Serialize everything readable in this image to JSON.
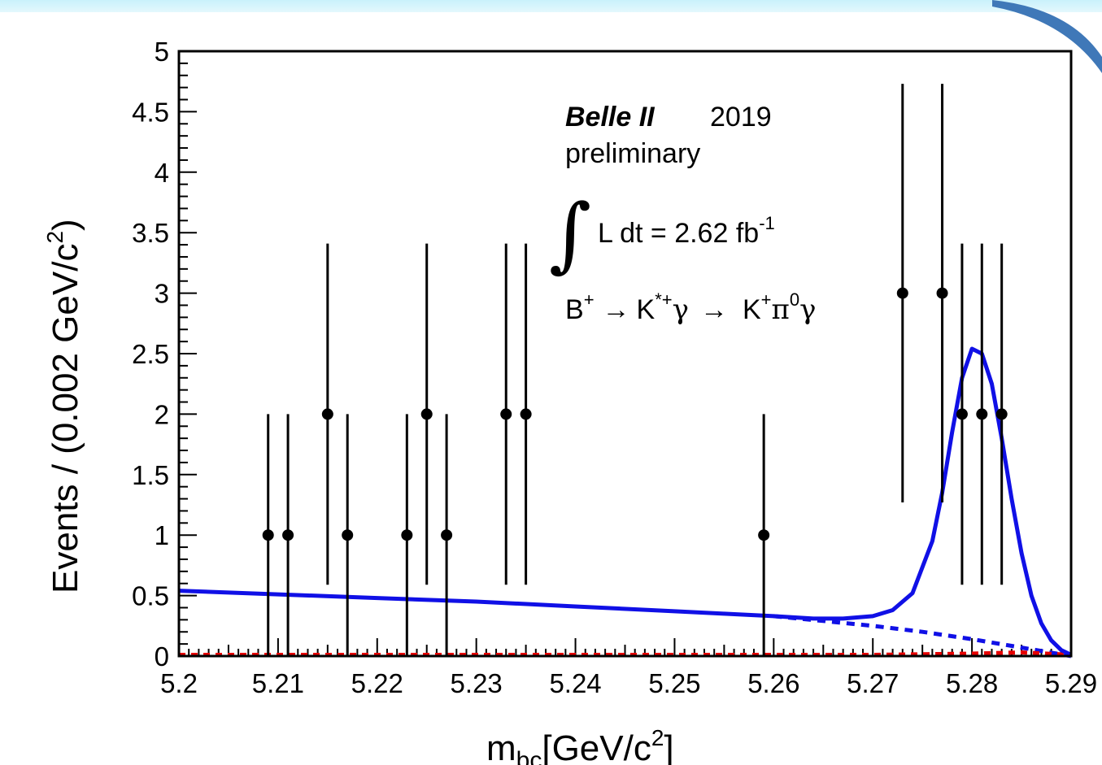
{
  "chart_data": {
    "type": "scatter",
    "xlabel_main": "m",
    "xlabel_sub": "bc",
    "xlabel_unit": "[GeV/c",
    "xlabel_sup": "2",
    "xlabel_close": "]",
    "ylabel_main": "Events / (0.002 GeV/c",
    "ylabel_sup": "2",
    "ylabel_close": ")",
    "xlim": [
      5.2,
      5.29
    ],
    "ylim": [
      0,
      5
    ],
    "x_ticks": [
      "5.2",
      "5.21",
      "5.22",
      "5.23",
      "5.24",
      "5.25",
      "5.26",
      "5.27",
      "5.28",
      "5.29"
    ],
    "y_ticks": [
      "0",
      "0.5",
      "1",
      "1.5",
      "2",
      "2.5",
      "3",
      "3.5",
      "4",
      "4.5",
      "5"
    ],
    "grid": false,
    "data_points": [
      {
        "x": 5.209,
        "y": 1,
        "lo": 0,
        "hi": 2
      },
      {
        "x": 5.211,
        "y": 1,
        "lo": 0,
        "hi": 2
      },
      {
        "x": 5.215,
        "y": 2,
        "lo": 0.59,
        "hi": 3.41
      },
      {
        "x": 5.217,
        "y": 1,
        "lo": 0,
        "hi": 2
      },
      {
        "x": 5.223,
        "y": 1,
        "lo": 0,
        "hi": 2
      },
      {
        "x": 5.225,
        "y": 2,
        "lo": 0.59,
        "hi": 3.41
      },
      {
        "x": 5.227,
        "y": 1,
        "lo": 0,
        "hi": 2
      },
      {
        "x": 5.233,
        "y": 2,
        "lo": 0.59,
        "hi": 3.41
      },
      {
        "x": 5.235,
        "y": 2,
        "lo": 0.59,
        "hi": 3.41
      },
      {
        "x": 5.259,
        "y": 1,
        "lo": 0,
        "hi": 2
      },
      {
        "x": 5.273,
        "y": 3,
        "lo": 1.27,
        "hi": 4.73
      },
      {
        "x": 5.277,
        "y": 3,
        "lo": 1.27,
        "hi": 4.73
      },
      {
        "x": 5.279,
        "y": 2,
        "lo": 0.59,
        "hi": 3.41
      },
      {
        "x": 5.281,
        "y": 2,
        "lo": 0.59,
        "hi": 3.41
      },
      {
        "x": 5.283,
        "y": 2,
        "lo": 0.59,
        "hi": 3.41
      }
    ],
    "fit_curves": {
      "total": {
        "style": "solid",
        "color": "#1010e6",
        "points": [
          [
            5.2,
            0.54
          ],
          [
            5.21,
            0.51
          ],
          [
            5.22,
            0.48
          ],
          [
            5.23,
            0.45
          ],
          [
            5.24,
            0.41
          ],
          [
            5.25,
            0.37
          ],
          [
            5.255,
            0.35
          ],
          [
            5.26,
            0.33
          ],
          [
            5.264,
            0.31
          ],
          [
            5.267,
            0.31
          ],
          [
            5.27,
            0.33
          ],
          [
            5.272,
            0.38
          ],
          [
            5.274,
            0.52
          ],
          [
            5.276,
            0.95
          ],
          [
            5.277,
            1.35
          ],
          [
            5.278,
            1.85
          ],
          [
            5.279,
            2.3
          ],
          [
            5.28,
            2.54
          ],
          [
            5.281,
            2.5
          ],
          [
            5.282,
            2.25
          ],
          [
            5.283,
            1.8
          ],
          [
            5.284,
            1.3
          ],
          [
            5.285,
            0.85
          ],
          [
            5.286,
            0.5
          ],
          [
            5.287,
            0.27
          ],
          [
            5.288,
            0.13
          ],
          [
            5.289,
            0.05
          ],
          [
            5.29,
            0.01
          ]
        ]
      },
      "background": {
        "style": "dashed",
        "color": "#1010e6",
        "points": [
          [
            5.26,
            0.33
          ],
          [
            5.265,
            0.29
          ],
          [
            5.27,
            0.25
          ],
          [
            5.275,
            0.2
          ],
          [
            5.28,
            0.14
          ],
          [
            5.285,
            0.07
          ],
          [
            5.29,
            0.0
          ]
        ]
      },
      "peaking": {
        "style": "dashed",
        "color": "#e60000",
        "points": [
          [
            5.2,
            0.01
          ],
          [
            5.25,
            0.01
          ],
          [
            5.27,
            0.01
          ],
          [
            5.28,
            0.02
          ],
          [
            5.285,
            0.03
          ],
          [
            5.29,
            0.01
          ]
        ]
      }
    },
    "annotations": {
      "experiment": "Belle II",
      "year": "2019",
      "status": "preliminary",
      "integral_symbol": "∫",
      "lumi_text": "L dt = 2.62 fb",
      "lumi_sup": "-1",
      "decay_b": "B",
      "decay_b_sup": "+",
      "arrow1": "→",
      "decay_kstar": "K",
      "decay_kstar_sup": "*+",
      "gamma1": "γ",
      "arrow2": "→",
      "decay_k": "K",
      "decay_k_sup": "+",
      "decay_pi": "π",
      "decay_pi_sup": "0",
      "gamma2": "γ"
    }
  }
}
